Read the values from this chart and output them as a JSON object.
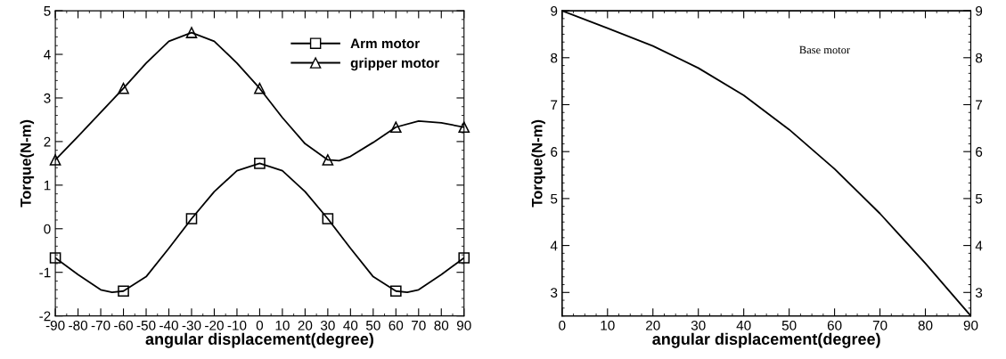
{
  "chart_data": [
    {
      "type": "line",
      "xlabel": "angular displacement(degree)",
      "ylabel": "Torque(N-m)",
      "xlim": [
        -90,
        90
      ],
      "xticks": [
        -90,
        -80,
        -70,
        -60,
        -50,
        -40,
        -30,
        -20,
        -10,
        0,
        10,
        20,
        30,
        40,
        50,
        60,
        70,
        80,
        90
      ],
      "ylim": [
        -2,
        5
      ],
      "yticks": [
        -2,
        -1,
        0,
        1,
        2,
        3,
        4,
        5
      ],
      "x": [
        -90,
        -60,
        -30,
        0,
        30,
        60,
        90
      ],
      "legend": "top right",
      "grid": false,
      "series": [
        {
          "type": "line",
          "color": "#000000",
          "x": [
            -90,
            -80,
            -70,
            -65,
            -60,
            -50,
            -40,
            -30,
            -20,
            -10,
            0,
            10,
            20,
            30,
            40,
            50,
            60,
            65,
            70,
            80,
            90
          ],
          "values": [
            -0.67,
            -1.05,
            -1.4,
            -1.46,
            -1.43,
            -1.1,
            -0.45,
            0.23,
            0.85,
            1.33,
            1.5,
            1.33,
            0.85,
            0.23,
            -0.45,
            -1.1,
            -1.43,
            -1.46,
            -1.4,
            -1.05,
            -0.67
          ]
        },
        {
          "type": "line",
          "color": "#000000",
          "x": [
            -90,
            -80,
            -70,
            -60,
            -50,
            -40,
            -30,
            -20,
            -10,
            0,
            10,
            20,
            30,
            35,
            40,
            50,
            60,
            70,
            80,
            90
          ],
          "values": [
            1.58,
            2.12,
            2.67,
            3.22,
            3.8,
            4.3,
            4.5,
            4.3,
            3.8,
            3.22,
            2.55,
            1.95,
            1.58,
            1.56,
            1.66,
            1.98,
            2.33,
            2.47,
            2.43,
            2.33
          ]
        },
        {
          "type": "scatter",
          "name": "Arm motor",
          "color": "#000000",
          "marker": "square",
          "values": [
            -0.67,
            -1.43,
            0.23,
            1.5,
            0.23,
            -1.43,
            -0.67
          ]
        },
        {
          "type": "scatter",
          "name": "gripper motor",
          "color": "#000000",
          "marker": "triangle",
          "values": [
            1.58,
            3.22,
            4.5,
            3.22,
            1.58,
            2.33,
            2.33
          ]
        }
      ]
    },
    {
      "type": "line",
      "xlabel": "angular displacement(degree)",
      "ylabel": "Torque(N-m)",
      "xlim": [
        0,
        90
      ],
      "xticks": [
        0,
        10,
        20,
        30,
        40,
        50,
        60,
        70,
        80,
        90
      ],
      "ylim": [
        2.5,
        9
      ],
      "yticks": [
        3,
        4,
        5,
        6,
        7,
        8,
        9
      ],
      "y2lim": [
        2.5,
        9
      ],
      "y2ticks": [
        3,
        4,
        5,
        6,
        7,
        8,
        9
      ],
      "x": [
        0,
        10,
        20,
        30,
        40,
        50,
        60,
        70,
        80,
        90
      ],
      "grid": false,
      "annotations": [
        "Base motor"
      ],
      "series": [
        {
          "color": "#000000",
          "values": [
            9,
            8.63,
            8.25,
            7.78,
            7.2,
            6.47,
            5.63,
            4.68,
            3.62,
            2.5
          ]
        }
      ]
    }
  ]
}
